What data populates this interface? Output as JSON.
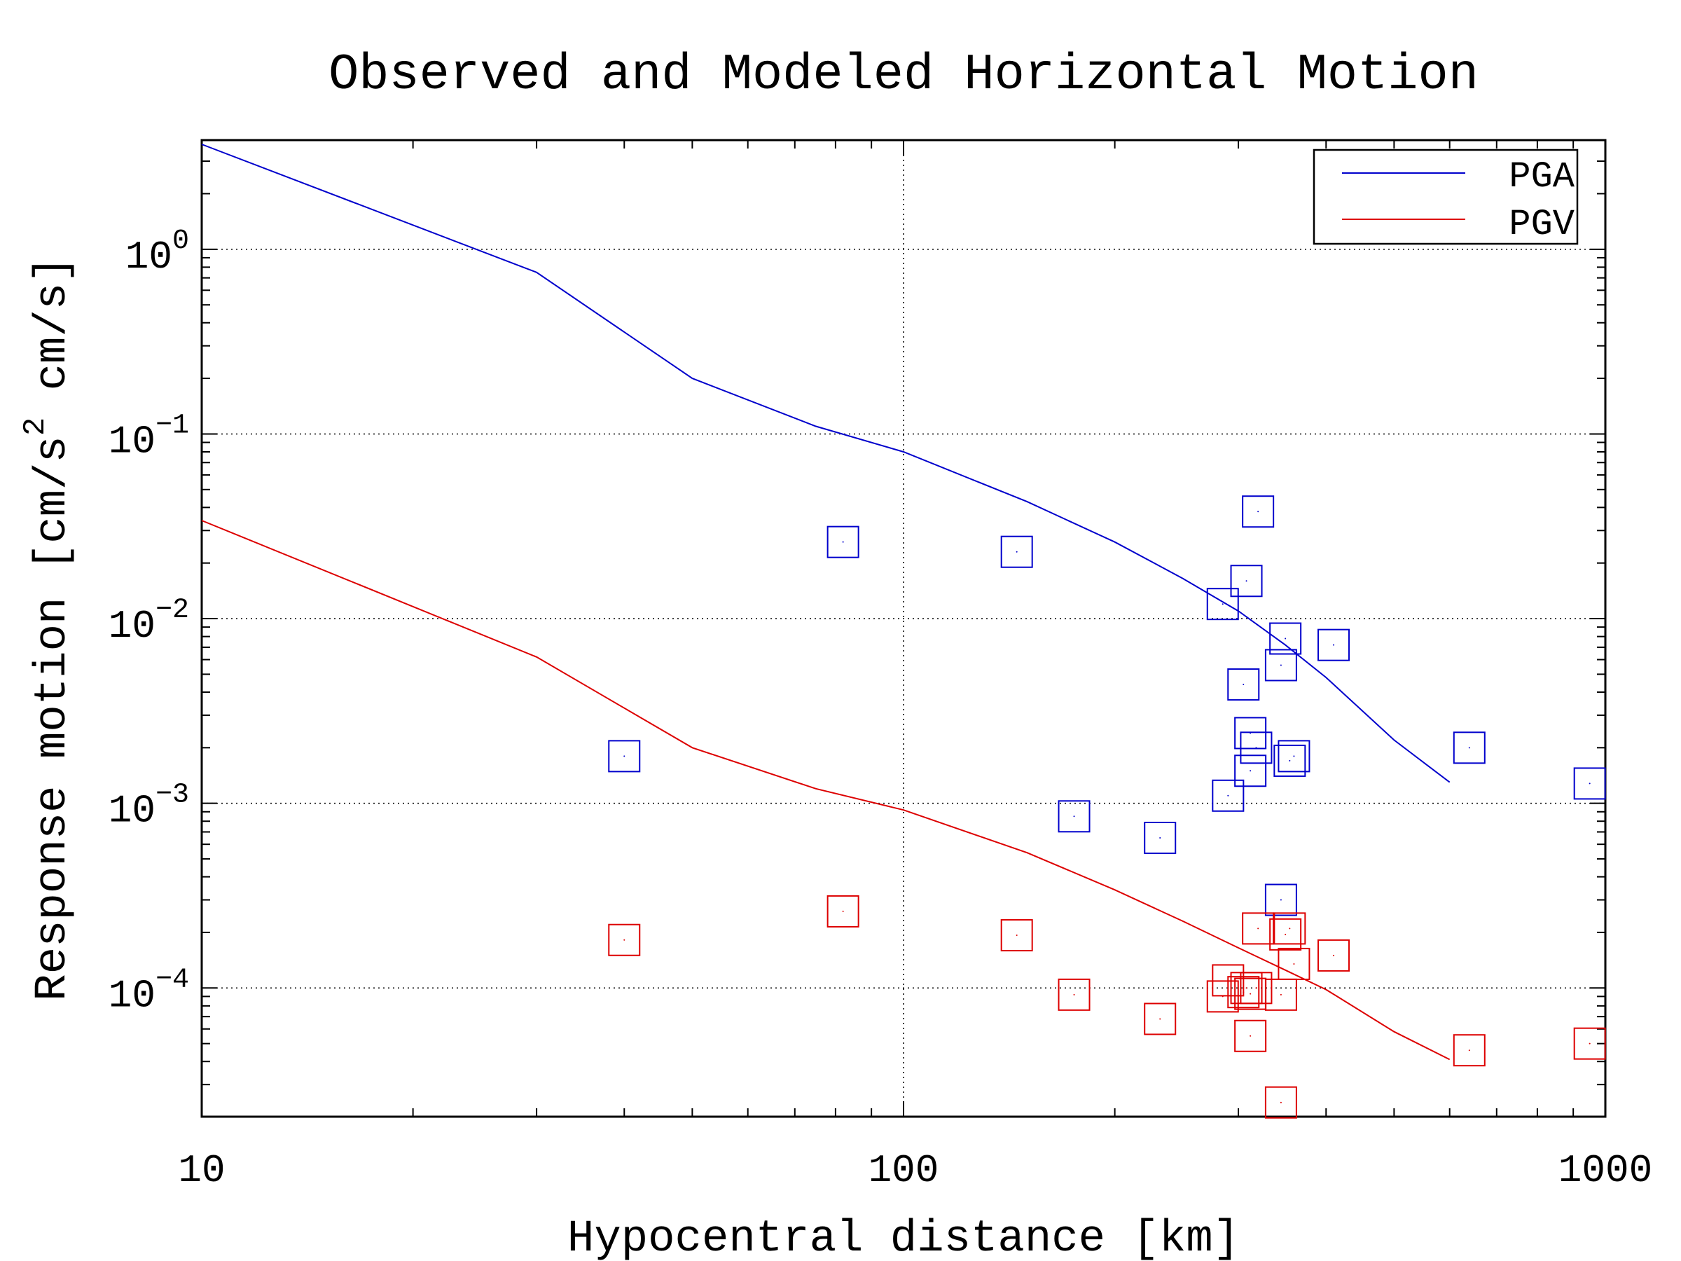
{
  "chart_data": {
    "type": "scatter",
    "title": "Observed and Modeled Horizontal Motion",
    "xlabel": "Hypocentral distance [km]",
    "ylabel_parts": {
      "a": "Response motion  [cm/s",
      "sup": "2",
      "b": "  cm/s]"
    },
    "xscale": "log",
    "yscale": "log",
    "xlim": [
      10,
      1000
    ],
    "ylim": [
      2.01e-05,
      3.9
    ],
    "x_ticks": [
      {
        "value": 10,
        "label": "10"
      },
      {
        "value": 100,
        "label": "100"
      },
      {
        "value": 1000,
        "label": "1000"
      }
    ],
    "y_ticks": [
      {
        "value": 0.0001,
        "base": "10",
        "exp": "−4"
      },
      {
        "value": 0.001,
        "base": "10",
        "exp": "−3"
      },
      {
        "value": 0.01,
        "base": "10",
        "exp": "−2"
      },
      {
        "value": 0.1,
        "base": "10",
        "exp": "−1"
      },
      {
        "value": 1,
        "base": "10",
        "exp": "0"
      }
    ],
    "grid": true,
    "legend_position": "top-right",
    "legend": [
      {
        "label": "PGA",
        "color": "#0000cc"
      },
      {
        "label": "PGV",
        "color": "#dd0000"
      }
    ],
    "model_lines": [
      {
        "name": "PGA",
        "color": "#0000cc",
        "x": [
          10,
          30,
          50,
          75,
          100,
          150,
          200,
          250,
          300,
          350,
          400,
          500,
          600
        ],
        "y": [
          3.7,
          0.75,
          0.2,
          0.11,
          0.08,
          0.043,
          0.026,
          0.0165,
          0.011,
          0.0072,
          0.0048,
          0.0022,
          0.0013
        ]
      },
      {
        "name": "PGV",
        "color": "#dd0000",
        "x": [
          10,
          30,
          50,
          75,
          100,
          150,
          200,
          250,
          300,
          350,
          400,
          500,
          600
        ],
        "y": [
          0.034,
          0.0062,
          0.002,
          0.0012,
          0.00092,
          0.00054,
          0.00034,
          0.00023,
          0.000165,
          0.000125,
          9.8e-05,
          5.8e-05,
          4.1e-05
        ]
      }
    ],
    "observations": [
      {
        "name": "PGA",
        "color": "#0000cc",
        "points": [
          [
            40,
            0.0018
          ],
          [
            82,
            0.026
          ],
          [
            145,
            0.023
          ],
          [
            175,
            0.00085
          ],
          [
            232,
            0.00065
          ],
          [
            285,
            0.012
          ],
          [
            290,
            0.0011
          ],
          [
            305,
            0.0044
          ],
          [
            308,
            0.016
          ],
          [
            312,
            0.0024
          ],
          [
            312,
            0.0015
          ],
          [
            318,
            0.002
          ],
          [
            320,
            0.038
          ],
          [
            345,
            0.0056
          ],
          [
            345,
            0.0003
          ],
          [
            350,
            0.0078
          ],
          [
            355,
            0.0017
          ],
          [
            360,
            0.0018
          ],
          [
            410,
            0.0072
          ],
          [
            640,
            0.002
          ],
          [
            950,
            0.00128
          ]
        ]
      },
      {
        "name": "PGV",
        "color": "#dd0000",
        "points": [
          [
            40,
            0.000182
          ],
          [
            82,
            0.00026
          ],
          [
            145,
            0.000193
          ],
          [
            175,
            9.2e-05
          ],
          [
            232,
            6.8e-05
          ],
          [
            285,
            9e-05
          ],
          [
            290,
            0.00011
          ],
          [
            305,
            9.5e-05
          ],
          [
            308,
            0.0001
          ],
          [
            312,
            5.5e-05
          ],
          [
            312,
            9.3e-05
          ],
          [
            318,
            0.0001
          ],
          [
            320,
            0.00021
          ],
          [
            345,
            9.2e-05
          ],
          [
            345,
            2.4e-05
          ],
          [
            350,
            0.000195
          ],
          [
            355,
            0.00021
          ],
          [
            360,
            0.000135
          ],
          [
            410,
            0.00015
          ],
          [
            640,
            4.6e-05
          ],
          [
            950,
            5e-05
          ]
        ]
      }
    ]
  }
}
